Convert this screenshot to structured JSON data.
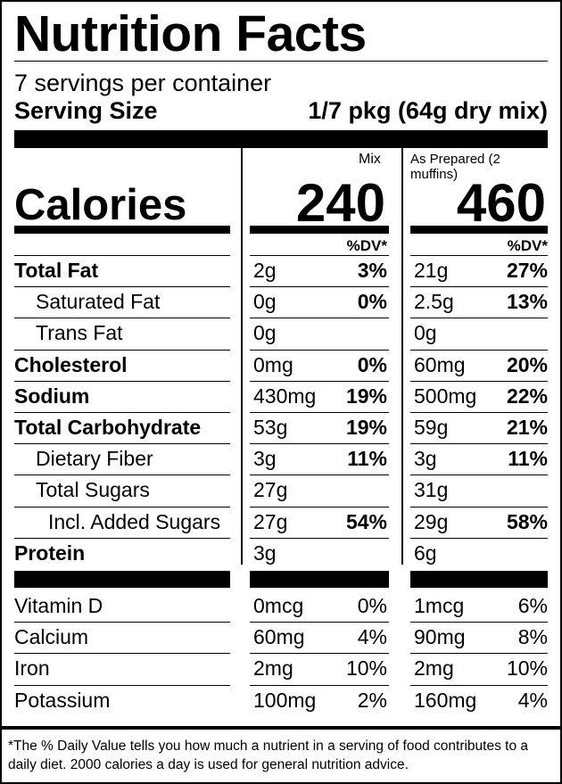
{
  "label": {
    "title": "Nutrition Facts",
    "servings": "7 servings per container",
    "serving_size_label": "Serving Size",
    "serving_size_value": "1/7 pkg (64g dry mix)",
    "col_mix": "Mix",
    "col_prepared": "As Prepared (2 muffins)",
    "calories_label": "Calories",
    "calories_mix": "240",
    "calories_prepared": "460",
    "dv_header": "%DV*",
    "rows": [
      {
        "name": "Total Fat",
        "bold": true,
        "indent": 0,
        "mix": "2g",
        "mix_dv": "3%",
        "prep": "21g",
        "prep_dv": "27%"
      },
      {
        "name": "Saturated Fat",
        "bold": false,
        "indent": 1,
        "mix": "0g",
        "mix_dv": "0%",
        "prep": "2.5g",
        "prep_dv": "13%"
      },
      {
        "name": "Trans Fat",
        "bold": false,
        "indent": 1,
        "mix": "0g",
        "mix_dv": "",
        "prep": "0g",
        "prep_dv": ""
      },
      {
        "name": "Cholesterol",
        "bold": true,
        "indent": 0,
        "mix": "0mg",
        "mix_dv": "0%",
        "prep": "60mg",
        "prep_dv": "20%"
      },
      {
        "name": "Sodium",
        "bold": true,
        "indent": 0,
        "mix": "430mg",
        "mix_dv": "19%",
        "prep": "500mg",
        "prep_dv": "22%"
      },
      {
        "name": "Total Carbohydrate",
        "bold": true,
        "indent": 0,
        "mix": "53g",
        "mix_dv": "19%",
        "prep": "59g",
        "prep_dv": "21%"
      },
      {
        "name": "Dietary Fiber",
        "bold": false,
        "indent": 1,
        "mix": "3g",
        "mix_dv": "11%",
        "prep": "3g",
        "prep_dv": "11%"
      },
      {
        "name": "Total Sugars",
        "bold": false,
        "indent": 1,
        "mix": "27g",
        "mix_dv": "",
        "prep": "31g",
        "prep_dv": ""
      },
      {
        "name": "Incl. Added Sugars",
        "bold": false,
        "indent": 2,
        "mix": "27g",
        "mix_dv": "54%",
        "prep": "29g",
        "prep_dv": "58%"
      },
      {
        "name": "Protein",
        "bold": true,
        "indent": 0,
        "mix": "3g",
        "mix_dv": "",
        "prep": "6g",
        "prep_dv": ""
      }
    ],
    "vitamins": [
      {
        "name": "Vitamin D",
        "mix": "0mcg",
        "mix_dv": "0%",
        "prep": "1mcg",
        "prep_dv": "6%"
      },
      {
        "name": "Calcium",
        "mix": "60mg",
        "mix_dv": "4%",
        "prep": "90mg",
        "prep_dv": "8%"
      },
      {
        "name": "Iron",
        "mix": "2mg",
        "mix_dv": "10%",
        "prep": "2mg",
        "prep_dv": "10%"
      },
      {
        "name": "Potassium",
        "mix": "100mg",
        "mix_dv": "2%",
        "prep": "160mg",
        "prep_dv": "4%"
      }
    ],
    "footnote": "*The % Daily Value tells you how much a nutrient in a serving of food contributes to a daily diet. 2000 calories a day is used for general nutrition advice."
  }
}
